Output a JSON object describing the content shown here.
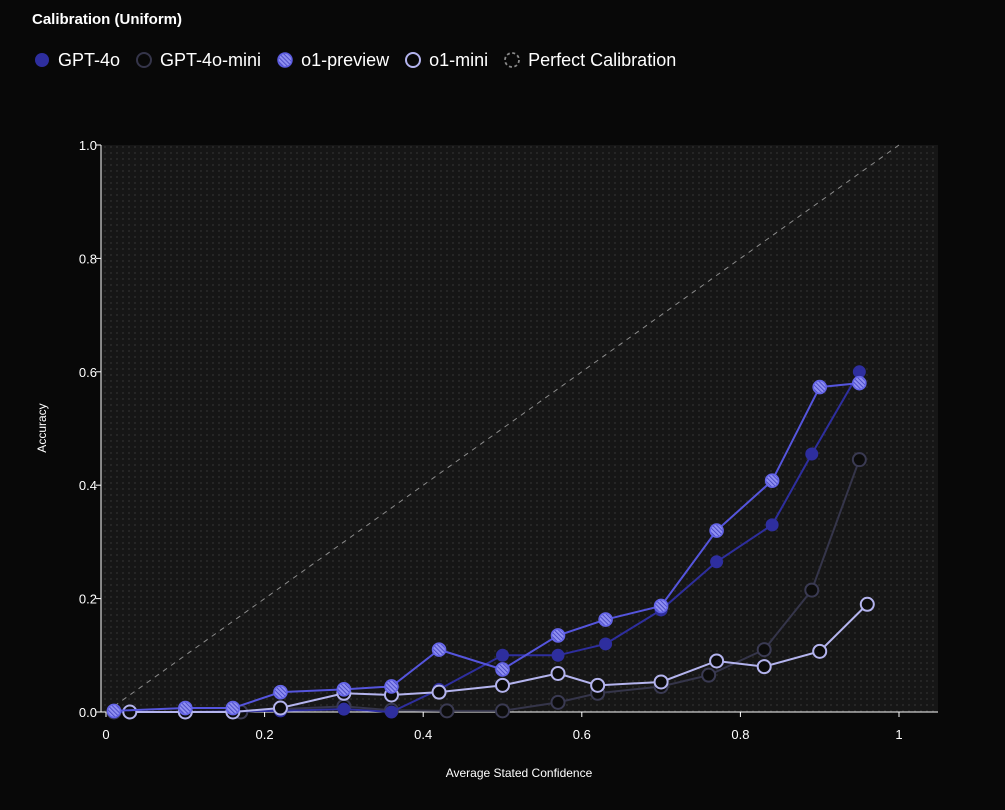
{
  "chart_data": {
    "type": "line",
    "title": "Calibration (Uniform)",
    "xlabel": "Average Stated Confidence",
    "ylabel": "Accuracy",
    "xlim": [
      0,
      1.05
    ],
    "ylim": [
      0,
      1.0
    ],
    "x_ticks": [
      "0",
      "0.2",
      "0.4",
      "0.6",
      "0.8",
      "1"
    ],
    "x_tick_values": [
      0,
      0.2,
      0.4,
      0.6,
      0.8,
      1.0
    ],
    "y_ticks": [
      "0.0",
      "0.2",
      "0.4",
      "0.6",
      "0.8",
      "1.0"
    ],
    "y_tick_values": [
      0,
      0.2,
      0.4,
      0.6,
      0.8,
      1.0
    ],
    "grid": false,
    "legend_position": "top-left",
    "series": [
      {
        "name": "GPT-4o",
        "style": "filled",
        "color": "#2e2e9e",
        "x": [
          0.01,
          0.1,
          0.22,
          0.3,
          0.36,
          0.42,
          0.5,
          0.57,
          0.63,
          0.7,
          0.77,
          0.84,
          0.89,
          0.95
        ],
        "y": [
          0.0,
          0.0,
          0.002,
          0.005,
          0.0,
          0.04,
          0.1,
          0.1,
          0.12,
          0.18,
          0.265,
          0.33,
          0.455,
          0.6
        ]
      },
      {
        "name": "GPT-4o-mini",
        "style": "hollow-dark",
        "color": "#35354a",
        "x": [
          0.01,
          0.1,
          0.17,
          0.22,
          0.3,
          0.36,
          0.43,
          0.5,
          0.57,
          0.62,
          0.7,
          0.76,
          0.83,
          0.89,
          0.95
        ],
        "y": [
          0.0,
          0.0,
          0.0,
          0.005,
          0.01,
          0.003,
          0.002,
          0.002,
          0.017,
          0.033,
          0.045,
          0.065,
          0.11,
          0.215,
          0.445
        ]
      },
      {
        "name": "o1-preview",
        "style": "hatched",
        "color": "#5b5be0",
        "x": [
          0.01,
          0.1,
          0.16,
          0.22,
          0.3,
          0.36,
          0.42,
          0.5,
          0.57,
          0.63,
          0.7,
          0.77,
          0.84,
          0.9,
          0.95
        ],
        "y": [
          0.002,
          0.007,
          0.007,
          0.035,
          0.04,
          0.045,
          0.11,
          0.075,
          0.135,
          0.163,
          0.187,
          0.32,
          0.408,
          0.573,
          0.58
        ]
      },
      {
        "name": "o1-mini",
        "style": "hollow-light",
        "color": "#b4b4ee",
        "x": [
          0.03,
          0.1,
          0.16,
          0.22,
          0.3,
          0.36,
          0.42,
          0.5,
          0.57,
          0.62,
          0.7,
          0.77,
          0.83,
          0.9,
          0.96
        ],
        "y": [
          0.0,
          0.0,
          0.0,
          0.007,
          0.033,
          0.03,
          0.035,
          0.047,
          0.068,
          0.047,
          0.053,
          0.09,
          0.08,
          0.107,
          0.19
        ]
      },
      {
        "name": "Perfect Calibration",
        "style": "dashed",
        "color": "#8a8a8a",
        "x": [
          0,
          1
        ],
        "y": [
          0,
          1
        ]
      }
    ]
  }
}
